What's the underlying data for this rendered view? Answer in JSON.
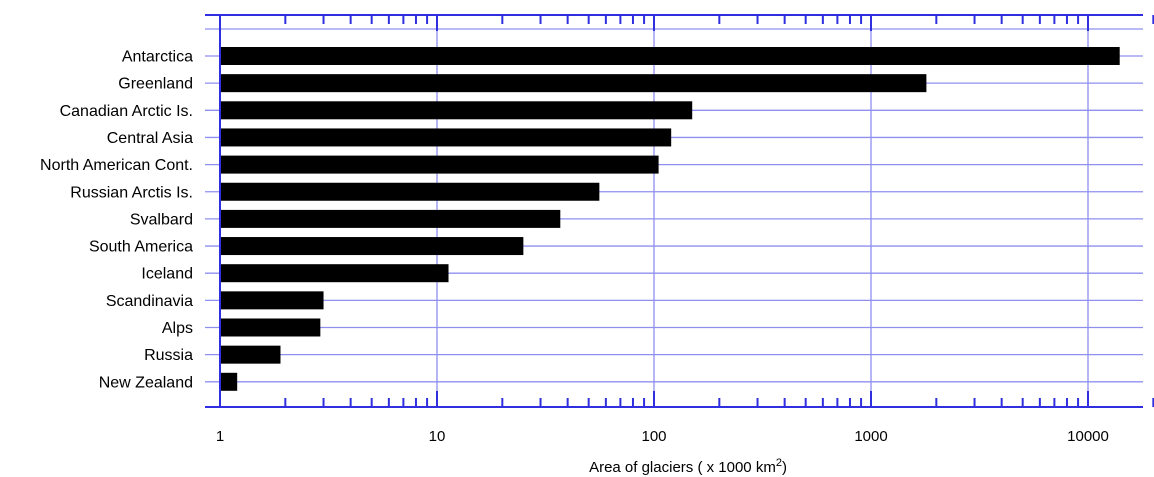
{
  "chart_data": {
    "type": "bar",
    "orientation": "horizontal",
    "xscale": "log",
    "xlim": [
      1,
      20000
    ],
    "grid": true,
    "categories": [
      "Antarctica",
      "Greenland",
      "Canadian Arctic Is.",
      "Central Asia",
      "North American Cont.",
      "Russian Arctis Is.",
      "Svalbard",
      "South America",
      "Iceland",
      "Scandinavia",
      "Alps",
      "Russia",
      "New Zealand"
    ],
    "values": [
      14000,
      1800,
      150,
      120,
      105,
      56,
      37,
      25,
      11.3,
      3.0,
      2.9,
      1.9,
      1.2
    ],
    "xticks": [
      "1",
      "10",
      "100",
      "1000",
      "10000"
    ],
    "xlabel": "Area of glaciers ( x 1000 km",
    "xlabel_sup": "2",
    "xlabel_end": ")",
    "colors": {
      "bar": "#000000",
      "grid": "#8f8ff0",
      "axis": "#2f2fe0"
    }
  }
}
